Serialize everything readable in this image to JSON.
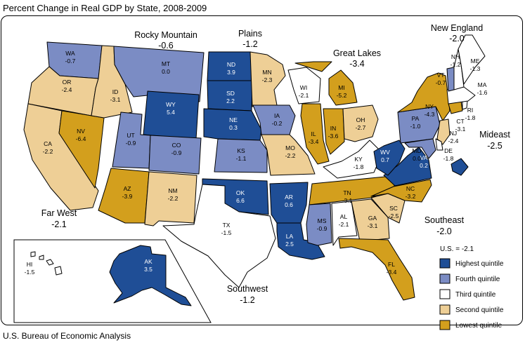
{
  "title": "Percent Change in Real GDP by State, 2008-2009",
  "source": "U.S. Bureau of Economic Analysis",
  "colors": {
    "highest": "#1f4e96",
    "fourth": "#7b8cc4",
    "third": "#ffffff",
    "second": "#eecf96",
    "lowest": "#d39f1d"
  },
  "legend": {
    "us_label": "U.S. = -2.1",
    "items": [
      {
        "key": "highest",
        "label": "Highest quintile"
      },
      {
        "key": "fourth",
        "label": "Fourth quintile"
      },
      {
        "key": "third",
        "label": "Third quintile"
      },
      {
        "key": "second",
        "label": "Second quintile"
      },
      {
        "key": "lowest",
        "label": "Lowest quintile"
      }
    ]
  },
  "regions": [
    {
      "name": "New England",
      "value": "-2.0"
    },
    {
      "name": "Rocky Mountain",
      "value": "-0.6"
    },
    {
      "name": "Plains",
      "value": "-1.2"
    },
    {
      "name": "Great Lakes",
      "value": "-3.4"
    },
    {
      "name": "Mideast",
      "value": "-2.5"
    },
    {
      "name": "Far West",
      "value": "-2.1"
    },
    {
      "name": "Southeast",
      "value": "-2.0"
    },
    {
      "name": "Southwest",
      "value": "-1.2"
    }
  ],
  "states": {
    "WA": {
      "value": "-0.7",
      "q": "fourth"
    },
    "OR": {
      "value": "-2.4",
      "q": "second"
    },
    "CA": {
      "value": "-2.2",
      "q": "second"
    },
    "NV": {
      "value": "-6.4",
      "q": "lowest"
    },
    "ID": {
      "value": "-3.1",
      "q": "second"
    },
    "MT": {
      "value": "0.0",
      "q": "fourth"
    },
    "WY": {
      "value": "5.4",
      "q": "highest"
    },
    "UT": {
      "value": "-0.9",
      "q": "fourth"
    },
    "CO": {
      "value": "-0.9",
      "q": "fourth"
    },
    "AZ": {
      "value": "-3.9",
      "q": "lowest"
    },
    "NM": {
      "value": "-2.2",
      "q": "second"
    },
    "ND": {
      "value": "3.9",
      "q": "highest"
    },
    "SD": {
      "value": "2.2",
      "q": "highest"
    },
    "NE": {
      "value": "0.3",
      "q": "highest"
    },
    "KS": {
      "value": "-1.1",
      "q": "fourth"
    },
    "OK": {
      "value": "6.6",
      "q": "highest"
    },
    "TX": {
      "value": "-1.5",
      "q": "third"
    },
    "MN": {
      "value": "-2.3",
      "q": "second"
    },
    "IA": {
      "value": "-0.2",
      "q": "fourth"
    },
    "MO": {
      "value": "-2.2",
      "q": "second"
    },
    "AR": {
      "value": "0.6",
      "q": "highest"
    },
    "LA": {
      "value": "2.5",
      "q": "highest"
    },
    "WI": {
      "value": "-2.1",
      "q": "third"
    },
    "IL": {
      "value": "-3.4",
      "q": "lowest"
    },
    "MI": {
      "value": "-5.2",
      "q": "lowest"
    },
    "IN": {
      "value": "-3.6",
      "q": "lowest"
    },
    "OH": {
      "value": "-2.7",
      "q": "second"
    },
    "KY": {
      "value": "-1.8",
      "q": "third"
    },
    "TN": {
      "value": "-3.1",
      "q": "lowest"
    },
    "MS": {
      "value": "-0.9",
      "q": "fourth"
    },
    "AL": {
      "value": "-2.1",
      "q": "third"
    },
    "GA": {
      "value": "-3.1",
      "q": "second"
    },
    "FL": {
      "value": "-3.4",
      "q": "lowest"
    },
    "SC": {
      "value": "-2.5",
      "q": "second"
    },
    "NC": {
      "value": "-3.2",
      "q": "lowest"
    },
    "VA": {
      "value": "0.2",
      "q": "highest"
    },
    "WV": {
      "value": "0.7",
      "q": "highest"
    },
    "PA": {
      "value": "-1.0",
      "q": "fourth"
    },
    "NY": {
      "value": "-4.3",
      "q": "lowest"
    },
    "NJ": {
      "value": "-2.4",
      "q": "second"
    },
    "DE": {
      "value": "-1.8",
      "q": "third"
    },
    "MD": {
      "value": "0.0",
      "q": "fourth"
    },
    "DC": {
      "value": "0.8",
      "q": "highest"
    },
    "CT": {
      "value": "-3.1",
      "q": "lowest"
    },
    "RI": {
      "value": "-1.8",
      "q": "third"
    },
    "MA": {
      "value": "-1.6",
      "q": "third"
    },
    "VT": {
      "value": "-0.7",
      "q": "fourth"
    },
    "NH": {
      "value": "-1.2",
      "q": "third"
    },
    "ME": {
      "value": "-1.3",
      "q": "third"
    },
    "AK": {
      "value": "3.5",
      "q": "highest"
    },
    "HI": {
      "value": "-1.5",
      "q": "third"
    }
  }
}
